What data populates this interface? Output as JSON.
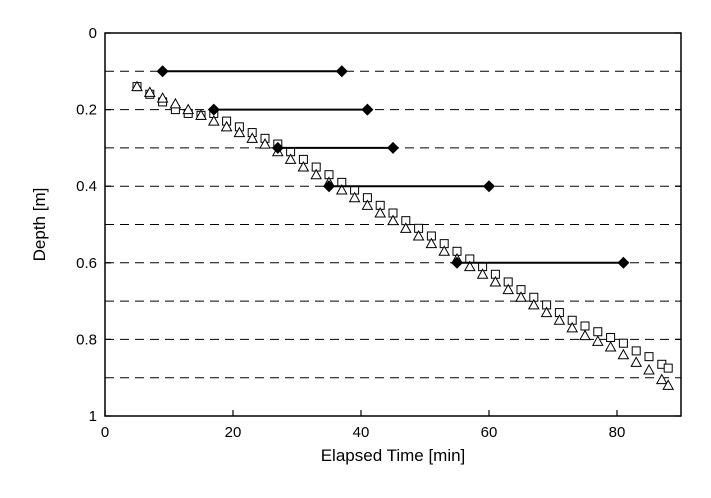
{
  "chart_data": {
    "type": "scatter",
    "title": "",
    "xlabel": "Elapsed Time [min]",
    "ylabel": "Depth [m]",
    "xlim": [
      0,
      90
    ],
    "ylim": [
      0,
      1
    ],
    "y_inverted": true,
    "x_ticks": [
      0,
      20,
      40,
      60,
      80
    ],
    "x_tick_labels": [
      "0",
      "20",
      "40",
      "60",
      "80"
    ],
    "y_ticks": [
      0,
      0.2,
      0.4,
      0.6,
      0.8,
      1
    ],
    "y_tick_labels": [
      "0",
      "0.2",
      "0.4",
      "0.6",
      "0.8",
      "1"
    ],
    "grid": {
      "horizontal_dashed_at": [
        0.1,
        0.2,
        0.3,
        0.4,
        0.5,
        0.6,
        0.7,
        0.8,
        0.9
      ]
    },
    "legend": "none",
    "intervals": [
      {
        "depth": 0.1,
        "start": 9,
        "end": 37
      },
      {
        "depth": 0.2,
        "start": 17,
        "end": 41
      },
      {
        "depth": 0.3,
        "start": 27,
        "end": 45
      },
      {
        "depth": 0.4,
        "start": 35,
        "end": 60
      },
      {
        "depth": 0.6,
        "start": 55,
        "end": 81
      }
    ],
    "series": [
      {
        "marker": "square",
        "x": [
          5,
          7,
          9,
          11,
          13,
          15,
          17,
          19,
          21,
          23,
          25,
          27,
          29,
          31,
          33,
          35,
          37,
          39,
          41,
          43,
          45,
          47,
          49,
          51,
          53,
          55,
          57,
          59,
          61,
          63,
          65,
          67,
          69,
          71,
          73,
          75,
          77,
          79,
          81,
          83,
          85,
          87,
          88
        ],
        "y": [
          0.14,
          0.16,
          0.18,
          0.2,
          0.21,
          0.215,
          0.21,
          0.23,
          0.245,
          0.26,
          0.275,
          0.29,
          0.31,
          0.33,
          0.35,
          0.37,
          0.39,
          0.41,
          0.43,
          0.45,
          0.47,
          0.49,
          0.51,
          0.53,
          0.55,
          0.57,
          0.59,
          0.61,
          0.63,
          0.65,
          0.67,
          0.69,
          0.71,
          0.73,
          0.75,
          0.765,
          0.78,
          0.795,
          0.81,
          0.83,
          0.845,
          0.865,
          0.875
        ]
      },
      {
        "marker": "triangle",
        "x": [
          5,
          7,
          9,
          11,
          13,
          15,
          17,
          19,
          21,
          23,
          25,
          27,
          29,
          31,
          33,
          35,
          37,
          39,
          41,
          43,
          45,
          47,
          49,
          51,
          53,
          55,
          57,
          59,
          61,
          63,
          65,
          67,
          69,
          71,
          73,
          75,
          77,
          79,
          81,
          83,
          85,
          87,
          88
        ],
        "y": [
          0.14,
          0.155,
          0.17,
          0.185,
          0.2,
          0.215,
          0.23,
          0.245,
          0.26,
          0.275,
          0.29,
          0.31,
          0.33,
          0.35,
          0.37,
          0.39,
          0.41,
          0.43,
          0.45,
          0.47,
          0.49,
          0.51,
          0.53,
          0.55,
          0.57,
          0.59,
          0.61,
          0.63,
          0.65,
          0.67,
          0.69,
          0.71,
          0.73,
          0.75,
          0.77,
          0.79,
          0.805,
          0.82,
          0.84,
          0.86,
          0.88,
          0.905,
          0.92
        ]
      }
    ]
  }
}
